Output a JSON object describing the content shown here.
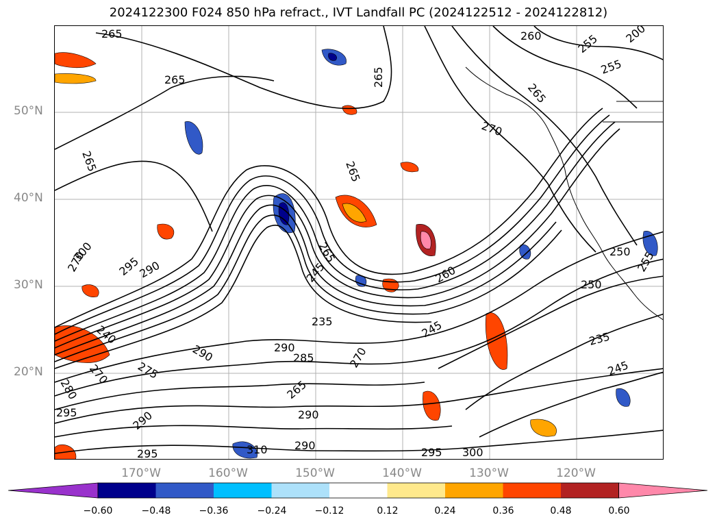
{
  "title": "2024122300 F024 850 hPa refract., IVT Landfall PC (2024122512 - 2024122812)",
  "lat_labels": [
    "50°N",
    "40°N",
    "30°N",
    "20°N"
  ],
  "lon_labels": [
    "170°W",
    "160°W",
    "150°W",
    "140°W",
    "130°W",
    "120°W"
  ],
  "contour_labels": [
    "265",
    "265",
    "265",
    "265",
    "265",
    "260",
    "255",
    "255",
    "265",
    "270",
    "200",
    "270",
    "300",
    "295",
    "290",
    "265",
    "245",
    "260",
    "235",
    "290",
    "240",
    "290",
    "285",
    "270",
    "265",
    "250",
    "255",
    "250",
    "245",
    "235",
    "245",
    "270",
    "275",
    "280",
    "290",
    "295",
    "290",
    "295",
    "300",
    "295",
    "310",
    "290"
  ],
  "colorbar": {
    "ticks": [
      "−0.60",
      "−0.48",
      "−0.36",
      "−0.24",
      "−0.12",
      "0.12",
      "0.24",
      "0.36",
      "0.48",
      "0.60"
    ],
    "colors": [
      "#9932CC",
      "#00008B",
      "#3159C7",
      "#00BFFF",
      "#ADE1FA",
      "#FFFFFF",
      "#FFE98C",
      "#FFA500",
      "#FF4500",
      "#B22222",
      "#FF88AA"
    ]
  }
}
